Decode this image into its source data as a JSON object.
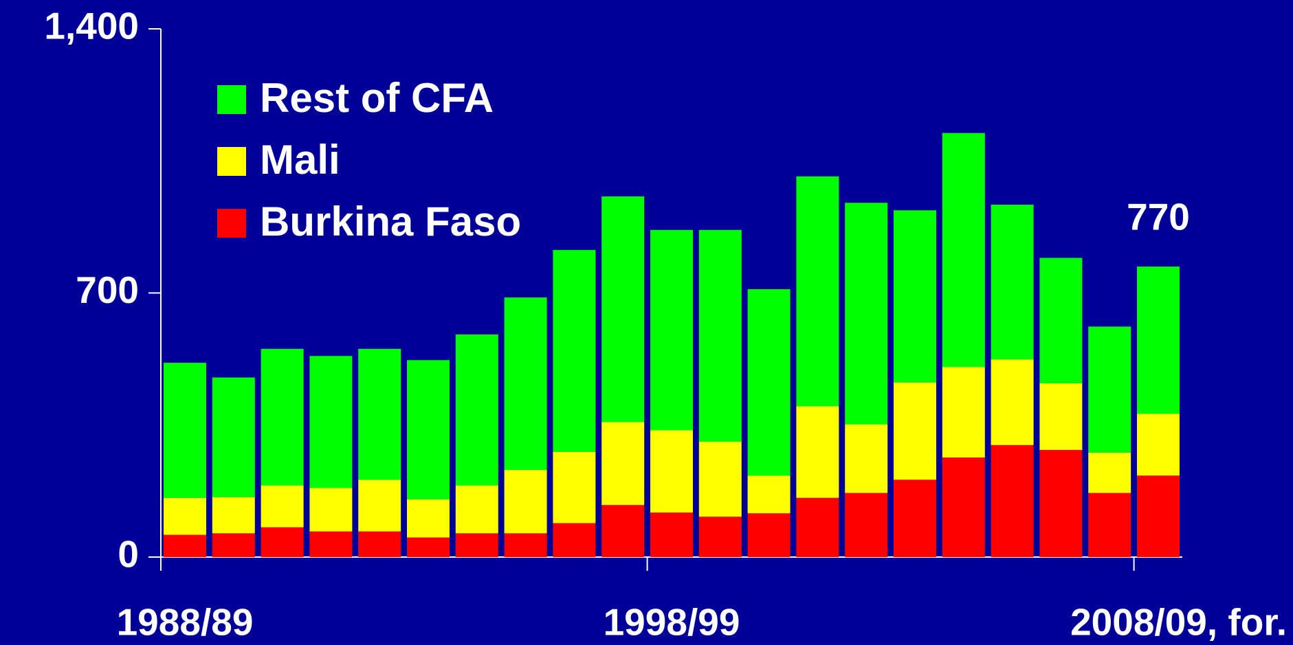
{
  "chart_data": {
    "type": "stacked_bar",
    "categories": [
      "1988/89",
      null,
      null,
      null,
      null,
      null,
      null,
      null,
      null,
      null,
      "1998/99",
      null,
      null,
      null,
      null,
      null,
      null,
      null,
      null,
      null,
      "2008/09, for."
    ],
    "series": [
      {
        "name": "Burkina Faso",
        "color": "#ff0000",
        "values": [
          59,
          63,
          79,
          68,
          68,
          52,
          63,
          63,
          90,
          138,
          118,
          107,
          116,
          157,
          170,
          205,
          264,
          297,
          284,
          170,
          216
        ]
      },
      {
        "name": "Mali",
        "color": "#ffff00",
        "values": [
          98,
          96,
          111,
          115,
          137,
          101,
          127,
          168,
          189,
          220,
          218,
          199,
          100,
          243,
          182,
          258,
          240,
          227,
          177,
          107,
          164
        ]
      },
      {
        "name": "Rest of CFA",
        "color": "#00ff00",
        "values": [
          358,
          317,
          362,
          350,
          347,
          369,
          400,
          457,
          535,
          598,
          531,
          561,
          494,
          609,
          587,
          456,
          620,
          410,
          332,
          334,
          390
        ]
      }
    ],
    "annotation": "770",
    "ylim": [
      0,
      1400
    ],
    "yticks": [
      0,
      700,
      {
        "value": 1400,
        "label": "1,400"
      }
    ],
    "legend": "upper left"
  }
}
